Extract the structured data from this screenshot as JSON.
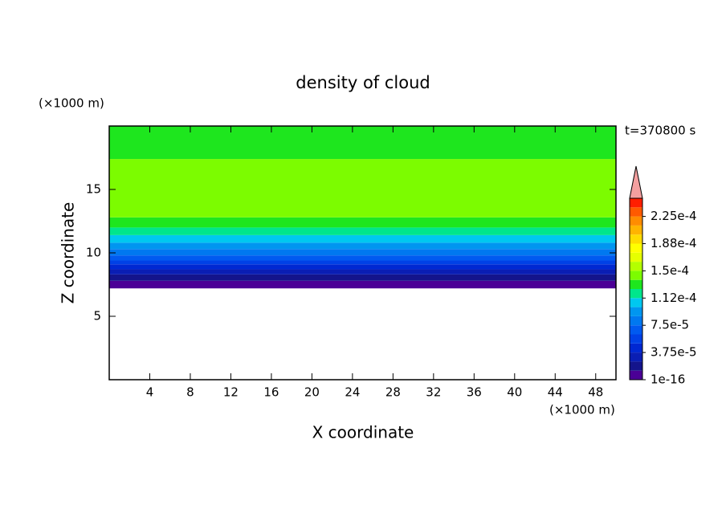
{
  "chart_data": {
    "type": "contour",
    "title": "density of cloud",
    "x_label": "X coordinate",
    "y_label": "Z coordinate",
    "x_unit": "(×1000 m)",
    "y_unit": "(×1000 m)",
    "time_label": "t=370800 s",
    "xlim": [
      0,
      50
    ],
    "xticks": [
      4,
      8,
      12,
      16,
      20,
      24,
      28,
      32,
      36,
      40,
      44,
      48
    ],
    "ylim": [
      0,
      20
    ],
    "yticks": [
      5,
      10,
      15
    ],
    "z": [
      7.2,
      7.8,
      8.3,
      8.7,
      9.1,
      9.4,
      9.8,
      10.3,
      10.8,
      11.4,
      12,
      12.8,
      17.4,
      20
    ],
    "values": [
      6e-06,
      1.8e-05,
      3e-05,
      4.3e-05,
      5.6e-05,
      6.8e-05,
      8e-05,
      9.3e-05,
      0.000106,
      0.000118,
      0.00013,
      0.000143,
      0.00013
    ],
    "levels": [
      1e-16,
      1.25e-05,
      2.5e-05,
      3.75e-05,
      5e-05,
      6.25e-05,
      7.5e-05,
      8.75e-05,
      0.0001,
      0.0001125,
      0.000125,
      0.0001375,
      0.00015,
      0.0001625,
      0.000175,
      0.0001875,
      0.0002,
      0.0002125,
      0.000225,
      0.0002375,
      0.00025
    ],
    "colors": [
      "#4b0096",
      "#14148c",
      "#0a1eb4",
      "#0028d2",
      "#0041e6",
      "#005af0",
      "#0078f0",
      "#0096f0",
      "#00c8f0",
      "#00e68c",
      "#1ee61e",
      "#7cfc00",
      "#b4ff00",
      "#e6ff00",
      "#ffff00",
      "#ffdc00",
      "#ffb400",
      "#ff8c00",
      "#ff5a00",
      "#ff1e00"
    ],
    "over_color": "#f4a0a0",
    "colorbar_ticks": [
      {
        "value": 1e-16,
        "label": "1e-16"
      },
      {
        "value": 3.75e-05,
        "label": "3.75e-5"
      },
      {
        "value": 7.5e-05,
        "label": "7.5e-5"
      },
      {
        "value": 0.0001125,
        "label": "1.12e-4"
      },
      {
        "value": 0.00015,
        "label": "1.5e-4"
      },
      {
        "value": 0.0001875,
        "label": "1.88e-4"
      },
      {
        "value": 0.000225,
        "label": "2.25e-4"
      }
    ]
  }
}
